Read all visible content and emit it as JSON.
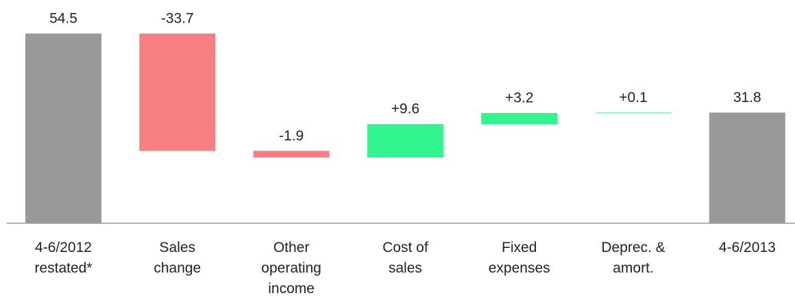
{
  "chart_data": {
    "type": "waterfall",
    "categories": [
      "4-6/2012\nrestated*",
      "Sales\nchange",
      "Other\noperating\nincome",
      "Cost of\nsales",
      "Fixed\nexpenses",
      "Deprec. &\namort.",
      "4-6/2013"
    ],
    "values": [
      54.5,
      -33.7,
      -1.9,
      9.6,
      3.2,
      0.1,
      31.8
    ],
    "value_labels": [
      "54.5",
      "-33.7",
      "-1.9",
      "+9.6",
      "+3.2",
      "+0.1",
      "31.8"
    ],
    "is_total": [
      true,
      false,
      false,
      false,
      false,
      false,
      true
    ],
    "colors": {
      "total": "#999999",
      "decrease": "#f77f82",
      "increase": "#33f58f"
    }
  }
}
